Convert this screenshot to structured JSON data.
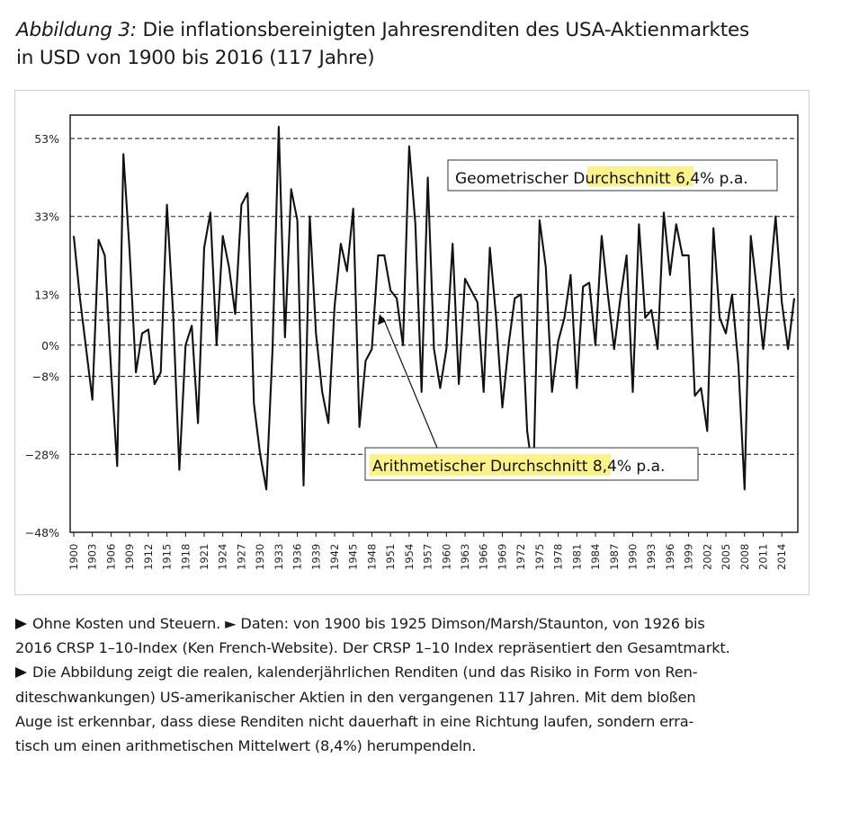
{
  "heading": {
    "figure_label": "Abbildung 3:",
    "title_line1": " Die inflationsbereinigten Jahresrenditen des USA-Aktienmarktes",
    "title_line2": "in USD von 1900 bis 2016 (117 Jahre)"
  },
  "chart_data": {
    "type": "line",
    "series": [
      {
        "x": [
          1900,
          1901,
          1902,
          1903,
          1904,
          1905,
          1906,
          1907,
          1908,
          1909,
          1910,
          1911,
          1912,
          1913,
          1914,
          1915,
          1916,
          1917,
          1918,
          1919,
          1920,
          1921,
          1922,
          1923,
          1924,
          1925,
          1926,
          1927,
          1928,
          1929,
          1930,
          1931,
          1932,
          1933,
          1934,
          1935,
          1936,
          1937,
          1938,
          1939,
          1940,
          1941,
          1942,
          1943,
          1944,
          1945,
          1946,
          1947,
          1948,
          1949,
          1950,
          1951,
          1952,
          1953,
          1954,
          1955,
          1956,
          1957,
          1958,
          1959,
          1960,
          1961,
          1962,
          1963,
          1964,
          1965,
          1966,
          1967,
          1968,
          1969,
          1970,
          1971,
          1972,
          1973,
          1974,
          1975,
          1976,
          1977,
          1978,
          1979,
          1980,
          1981,
          1982,
          1983,
          1984,
          1985,
          1986,
          1987,
          1988,
          1989,
          1990,
          1991,
          1992,
          1993,
          1994,
          1995,
          1996,
          1997,
          1998,
          1999,
          2000,
          2001,
          2002,
          2003,
          2004,
          2005,
          2006,
          2007,
          2008,
          2009,
          2010,
          2011,
          2012,
          2013,
          2014,
          2015,
          2016
        ],
        "values": [
          28,
          12,
          -1,
          -14,
          27,
          23,
          -6,
          -31,
          49,
          24,
          -7,
          3,
          4,
          -10,
          -7,
          36,
          8,
          -32,
          0,
          5,
          -20,
          25,
          34,
          0,
          28,
          20,
          8,
          36,
          39,
          -15,
          -28,
          -37,
          -1,
          56,
          2,
          40,
          32,
          -36,
          33,
          3,
          -12,
          -20,
          10,
          26,
          19,
          35,
          -21,
          -4,
          -1,
          23,
          23,
          14,
          12,
          0,
          51,
          31,
          -12,
          43,
          -1,
          -11,
          -1,
          26,
          -10,
          17,
          14,
          11,
          -12,
          25,
          7,
          -16,
          0,
          12,
          13,
          -22,
          -34,
          32,
          20,
          -12,
          1,
          7,
          18,
          -11,
          15,
          16,
          0,
          28,
          13,
          -1,
          12,
          23,
          -12,
          31,
          7,
          9,
          -1,
          34,
          18,
          31,
          23,
          23,
          -13,
          -11,
          -22,
          30,
          7,
          3,
          13,
          -5,
          -37,
          28,
          14,
          -1,
          15,
          33,
          11,
          -1,
          12
        ]
      }
    ],
    "yticks": [
      53,
      33,
      13,
      0,
      -8,
      -28,
      -48
    ],
    "ytick_labels": [
      "53%",
      "33%",
      "13%",
      "0%",
      "−8%",
      "−28%",
      "−48%"
    ],
    "xtick_labels": [
      "1900",
      "1903",
      "1906",
      "1909",
      "1912",
      "1915",
      "1918",
      "1921",
      "1924",
      "1927",
      "1930",
      "1933",
      "1936",
      "1939",
      "1942",
      "1945",
      "1948",
      "1951",
      "1954",
      "1957",
      "1960",
      "1963",
      "1966",
      "1969",
      "1972",
      "1975",
      "1978",
      "1981",
      "1984",
      "1987",
      "1990",
      "1993",
      "1996",
      "1999",
      "2002",
      "2005",
      "2008",
      "2011",
      "2014"
    ],
    "ylim": [
      -48,
      59
    ],
    "reference_lines": [
      {
        "label": "Arithmetischer Durchschnitt",
        "value": 8.4
      },
      {
        "label": "Geometrischer Durchschnitt",
        "value": 6.4
      }
    ],
    "annotations": {
      "geometric": {
        "highlight": "Durchschnitt",
        "prefix": "Geometrischer ",
        "suffix": " 6,4% p.a."
      },
      "arithmetic": {
        "highlight": "Arithmetischer Durchschnitt",
        "suffix": " 8,4% p.a."
      }
    },
    "highlight_color": "#fbf28a",
    "line_color": "#111111"
  },
  "notes": [
    {
      "marker": true,
      "text": "Ohne Kosten und Steuern. ► Daten: von 1900 bis 1925 Dimson/Marsh/Staunton, von 1926 bis"
    },
    {
      "marker": false,
      "text": "2016 CRSP 1–10-Index (Ken French-Website). Der CRSP 1–10 Index repräsentiert den Gesamtmarkt."
    },
    {
      "marker": true,
      "text": "Die Abbildung zeigt die realen, kalenderjährlichen Renditen (und das Risiko in Form von Ren-"
    },
    {
      "marker": false,
      "text": "diteschwankungen) US-amerikanischer Aktien in den vergangenen 117 Jahren. Mit dem bloßen"
    },
    {
      "marker": false,
      "text": "Auge ist erkennbar, dass diese Renditen nicht dauerhaft in eine Richtung laufen, sondern erra-"
    },
    {
      "marker": false,
      "text": "tisch um einen arithmetischen Mittelwert (8,4%) herumpendeln."
    }
  ]
}
